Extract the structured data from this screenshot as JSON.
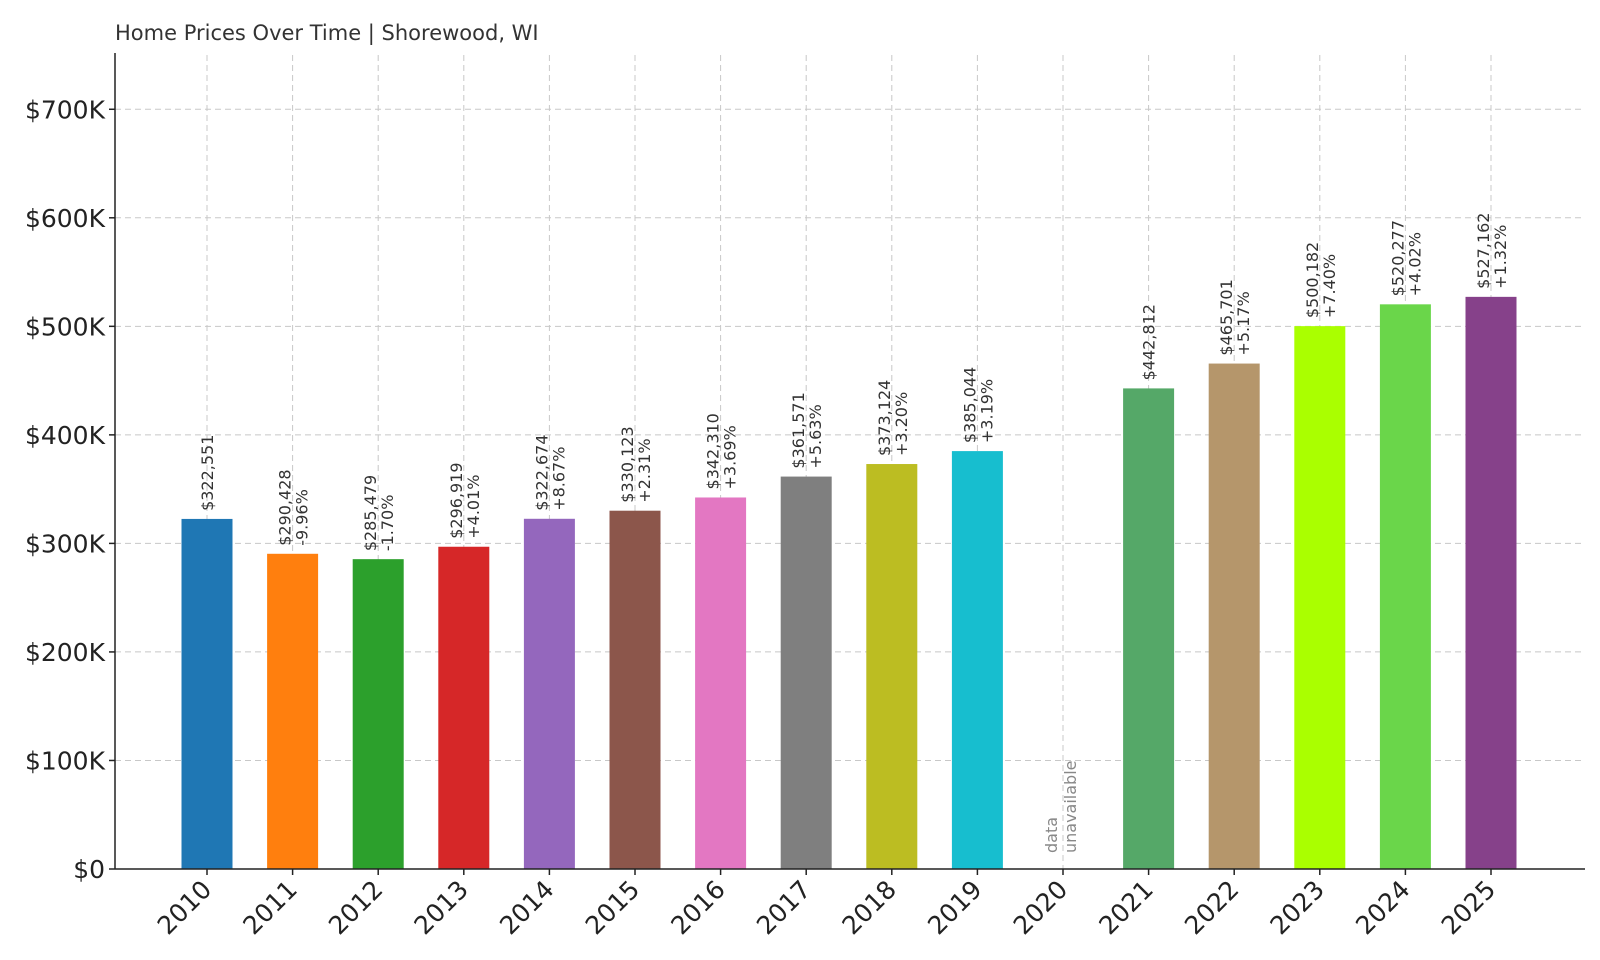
{
  "chart_data": {
    "type": "bar",
    "title": "Home Prices Over Time | Shorewood, WI",
    "xlabel": "",
    "ylabel": "",
    "ylim": [
      0,
      750000
    ],
    "y_ticks": [
      0,
      100000,
      200000,
      300000,
      400000,
      500000,
      600000,
      700000
    ],
    "y_tick_labels": [
      "$0",
      "$100K",
      "$200K",
      "$300K",
      "$400K",
      "$500K",
      "$600K",
      "$700K"
    ],
    "grid": true,
    "categories": [
      "2010",
      "2011",
      "2012",
      "2013",
      "2014",
      "2015",
      "2016",
      "2017",
      "2018",
      "2019",
      "2020",
      "2021",
      "2022",
      "2023",
      "2024",
      "2025"
    ],
    "values": [
      322551,
      290428,
      285479,
      296919,
      322674,
      330123,
      342310,
      361571,
      373124,
      385044,
      null,
      442812,
      465701,
      500182,
      520277,
      527162
    ],
    "value_labels": [
      "$322,551",
      "$290,428",
      "$285,479",
      "$296,919",
      "$322,674",
      "$330,123",
      "$342,310",
      "$361,571",
      "$373,124",
      "$385,044",
      "",
      "$442,812",
      "$465,701",
      "$500,182",
      "$520,277",
      "$527,162"
    ],
    "change_labels": [
      "",
      "-9.96%",
      "-1.70%",
      "+4.01%",
      "+8.67%",
      "+2.31%",
      "+3.69%",
      "+5.63%",
      "+3.20%",
      "+3.19%",
      "",
      "",
      "+5.17%",
      "+7.40%",
      "+4.02%",
      "+1.32%"
    ],
    "missing_label_lines": [
      "data",
      "unavailable"
    ],
    "colors": [
      "#1f77b4",
      "#ff7f0e",
      "#2ca02c",
      "#d62728",
      "#9467bd",
      "#8c564b",
      "#e377c2",
      "#7f7f7f",
      "#bcbd22",
      "#17becf",
      "#cccccc",
      "#55a868",
      "#b5966b",
      "#aaff00",
      "#6ad64a",
      "#86418a"
    ]
  }
}
